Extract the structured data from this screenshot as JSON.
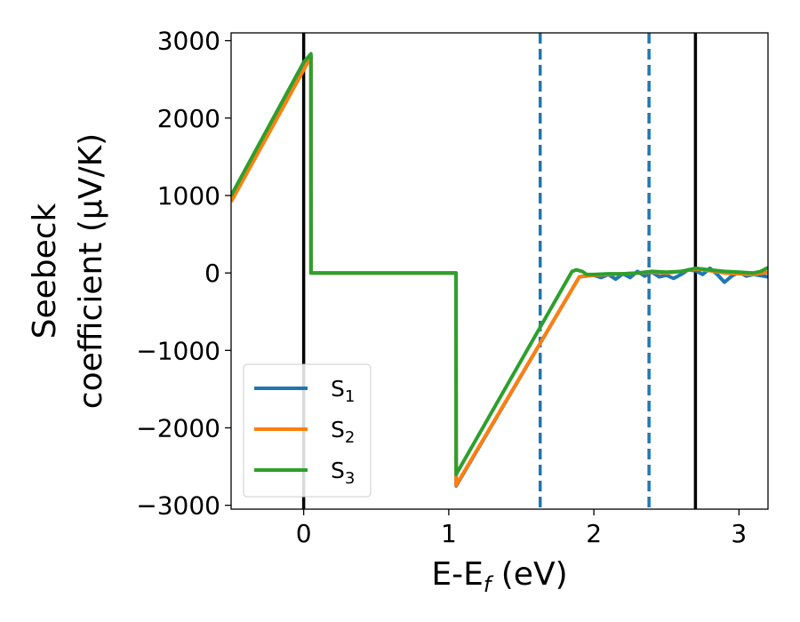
{
  "chart_data": {
    "type": "line",
    "xlabel": "E-E",
    "xlabel_sub": "f",
    "xlabel_unit": " (eV)",
    "ylabel_line1": "Seebeck",
    "ylabel_line2": "coefficient  (μV/K)",
    "xlim": [
      -0.5,
      3.2
    ],
    "ylim": [
      -3050,
      3100
    ],
    "xticks": [
      0,
      1,
      2,
      3
    ],
    "xtick_labels": [
      "0",
      "1",
      "2",
      "3"
    ],
    "yticks": [
      -3000,
      -2000,
      -1000,
      0,
      1000,
      2000,
      3000
    ],
    "ytick_labels": [
      "−3000",
      "−2000",
      "−1000",
      "0",
      "1000",
      "2000",
      "3000"
    ],
    "legend_position": "lower-left",
    "vlines": [
      {
        "x": 0.0,
        "style": "solid",
        "color": "#000000"
      },
      {
        "x": 1.63,
        "style": "dashed",
        "color": "#1f77b4"
      },
      {
        "x": 2.38,
        "style": "dashed",
        "color": "#1f77b4"
      },
      {
        "x": 2.7,
        "style": "solid",
        "color": "#000000"
      }
    ],
    "series": [
      {
        "name": "S",
        "sub": "1",
        "color": "#1f77b4",
        "x": [
          -0.5,
          0.0,
          0.05,
          0.051,
          1.05,
          1.051,
          1.9,
          2.0,
          2.05,
          2.1,
          2.15,
          2.2,
          2.25,
          2.3,
          2.35,
          2.4,
          2.45,
          2.5,
          2.55,
          2.6,
          2.65,
          2.7,
          2.75,
          2.8,
          2.85,
          2.9,
          2.95,
          3.0,
          3.05,
          3.1,
          3.2
        ],
        "y": [
          950,
          2650,
          2800,
          0,
          0,
          -2750,
          -50,
          -30,
          -60,
          -20,
          -80,
          -10,
          -60,
          20,
          -40,
          10,
          -50,
          -30,
          -70,
          -20,
          40,
          30,
          -20,
          60,
          -20,
          -120,
          -40,
          10,
          -40,
          -20,
          -50
        ]
      },
      {
        "name": "S",
        "sub": "2",
        "color": "#ff7f0e",
        "x": [
          -0.5,
          0.0,
          0.05,
          0.051,
          1.05,
          1.051,
          1.9,
          2.0,
          2.1,
          2.2,
          2.3,
          2.4,
          2.5,
          2.6,
          2.7,
          2.8,
          2.9,
          3.0,
          3.1,
          3.2
        ],
        "y": [
          920,
          2620,
          2800,
          0,
          0,
          -2740,
          -50,
          -30,
          -20,
          -10,
          0,
          10,
          0,
          20,
          50,
          30,
          0,
          -10,
          -20,
          10
        ]
      },
      {
        "name": "S",
        "sub": "3",
        "color": "#2ca02c",
        "x": [
          -0.5,
          0.0,
          0.05,
          0.051,
          1.05,
          1.051,
          1.85,
          1.88,
          1.92,
          1.95,
          2.0,
          2.1,
          2.2,
          2.3,
          2.4,
          2.5,
          2.6,
          2.7,
          2.8,
          2.9,
          3.0,
          3.1,
          3.15,
          3.2
        ],
        "y": [
          1000,
          2720,
          2830,
          0,
          0,
          -2600,
          20,
          40,
          20,
          -20,
          -20,
          -10,
          -10,
          0,
          20,
          10,
          20,
          60,
          40,
          20,
          10,
          0,
          20,
          70
        ]
      }
    ]
  }
}
